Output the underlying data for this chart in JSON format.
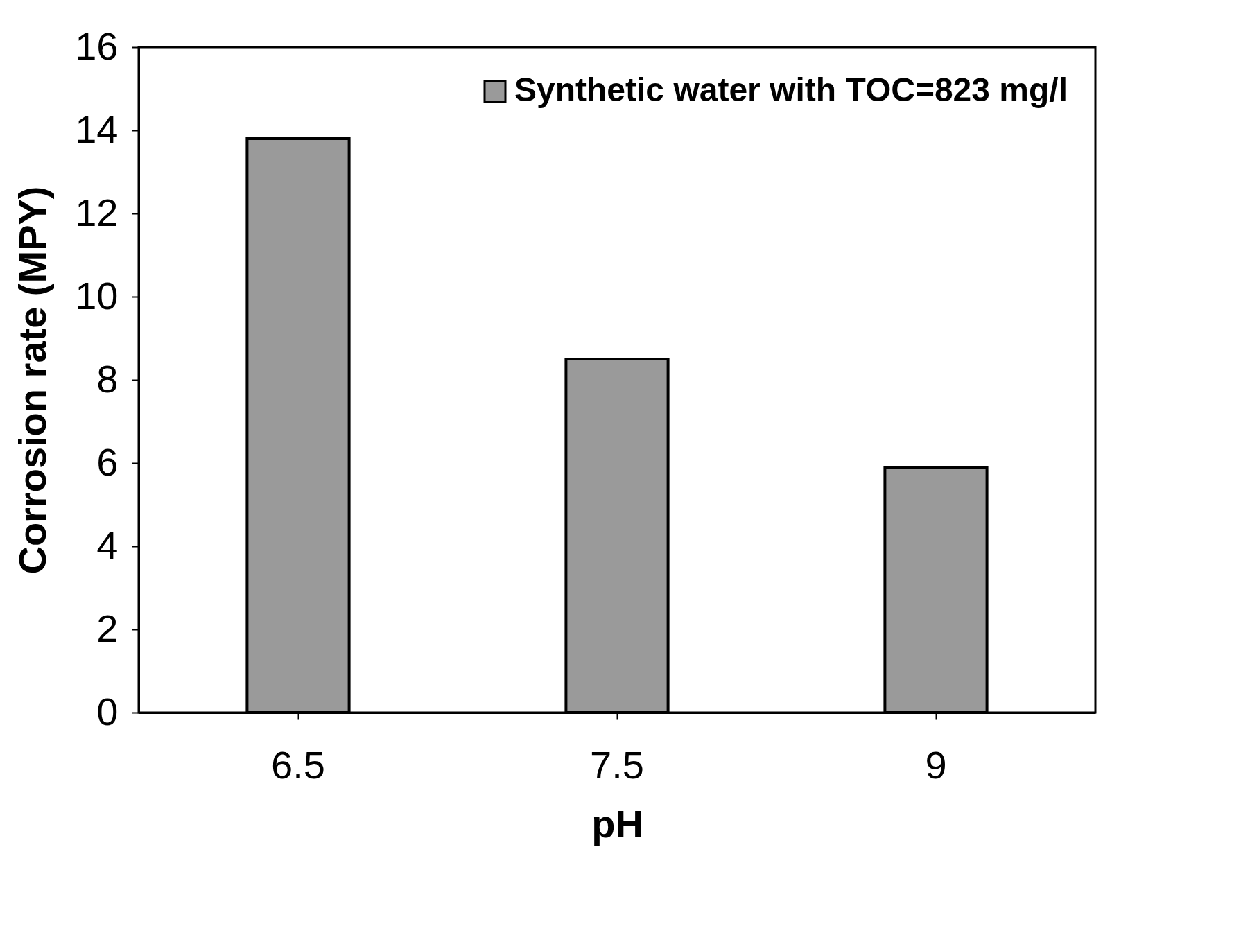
{
  "chart_data": {
    "type": "bar",
    "xlabel": "pH",
    "ylabel": "Corrosion rate (MPY)",
    "categories": [
      "6.5",
      "7.5",
      "9"
    ],
    "series": [
      {
        "name": "Synthetic water with TOC=823 mg/l",
        "color": "#9a9a9a",
        "values": [
          13.8,
          8.5,
          5.9
        ]
      }
    ],
    "ylim": [
      0,
      16
    ],
    "yticks": [
      0,
      2,
      4,
      6,
      8,
      10,
      12,
      14,
      16
    ],
    "grid": false,
    "legend": "top right"
  }
}
